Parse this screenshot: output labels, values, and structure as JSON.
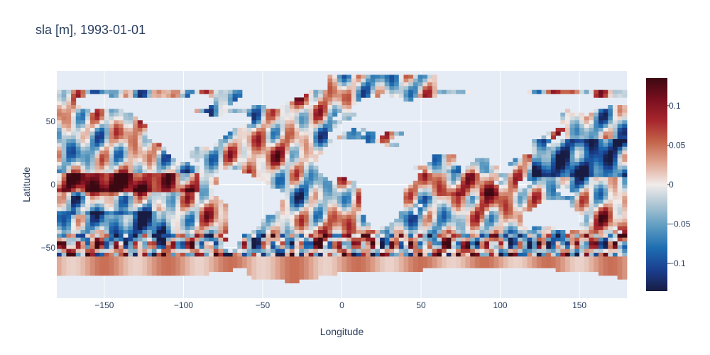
{
  "chart_data": {
    "type": "heatmap",
    "title": "sla [m], 1993-01-01",
    "xlabel": "Longitude",
    "ylabel": "Latitude",
    "xlim": [
      -180,
      180
    ],
    "ylim": [
      -90,
      90
    ],
    "x_ticks": [
      -150,
      -100,
      -50,
      0,
      50,
      100,
      150
    ],
    "x_tick_labels": [
      "−150",
      "−100",
      "−50",
      "0",
      "50",
      "100",
      "150"
    ],
    "y_ticks": [
      50,
      0,
      -50
    ],
    "y_tick_labels": [
      "50",
      "0",
      "−50"
    ],
    "grid": true,
    "colorscale": {
      "name": "balance",
      "range": [
        -0.135,
        0.135
      ],
      "ticks": [
        0.1,
        0.05,
        0,
        -0.05,
        -0.1
      ],
      "tick_labels": [
        "0.1",
        "0.05",
        "0",
        "−0.05",
        "−0.1"
      ],
      "colors": [
        "#181c43",
        "#1b3f8f",
        "#1d6cb1",
        "#5b9ac1",
        "#a9c4d3",
        "#f1eceb",
        "#dfa793",
        "#c4654b",
        "#a7262c",
        "#7a0f1f",
        "#3c0912"
      ]
    },
    "plot_background": "#e5ecf6",
    "grid_color": "#ffffff"
  }
}
